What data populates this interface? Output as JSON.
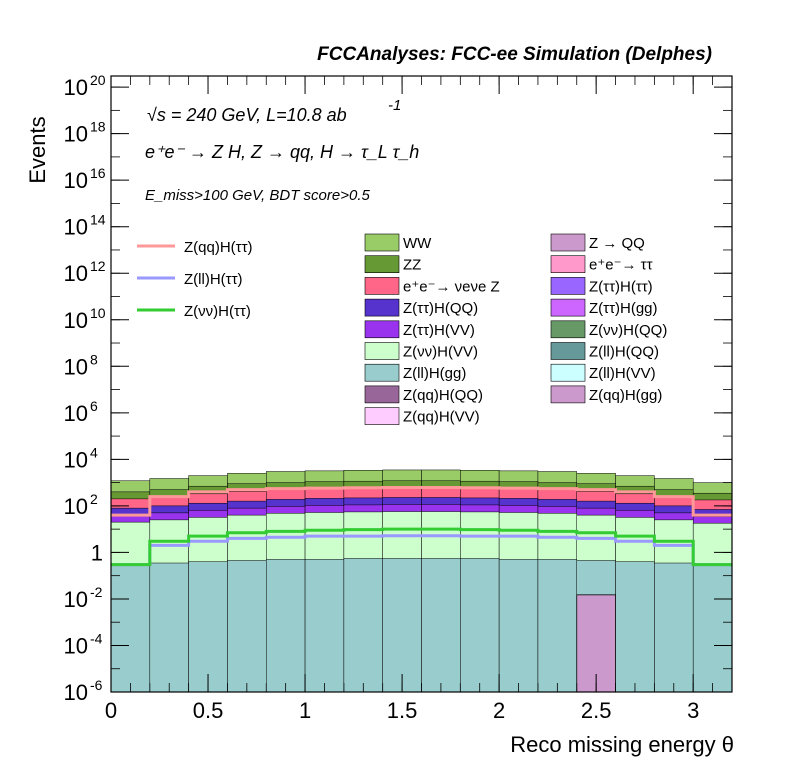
{
  "header": {
    "title": "FCCAnalyses: FCC-ee Simulation (Delphes)",
    "energy_line": "√s = 240 GeV, L=10.8 ab",
    "lumi_exponent": "-1",
    "process_line": "e⁺e⁻ → Z H, Z → qq, H → τ_L τ_h",
    "cut_line": "E_miss>100 GeV, BDT score>0.5"
  },
  "chart_data": {
    "type": "bar",
    "subtype": "stacked-histogram-log",
    "xlabel": "Reco missing energy θ",
    "ylabel": "Events",
    "xlim": [
      0,
      3.2
    ],
    "ylim": [
      1e-06,
      3e+20
    ],
    "log_y": true,
    "bin_edges": [
      0,
      0.2,
      0.4,
      0.6,
      0.8,
      1.0,
      1.2,
      1.4,
      1.6,
      1.8,
      2.0,
      2.2,
      2.4,
      2.6,
      2.8,
      3.0,
      3.2
    ],
    "x_ticks": [
      "0",
      "0.5",
      "1",
      "1.5",
      "2",
      "2.5",
      "3"
    ],
    "y_ticks": [
      {
        "exp": -6,
        "label": "10",
        "sup": "-6"
      },
      {
        "exp": -4,
        "label": "10",
        "sup": "-4"
      },
      {
        "exp": -2,
        "label": "10",
        "sup": "-2"
      },
      {
        "exp": 0,
        "label": "1",
        "sup": ""
      },
      {
        "exp": 2,
        "label": "10",
        "sup": "2"
      },
      {
        "exp": 4,
        "label": "10",
        "sup": "4"
      },
      {
        "exp": 6,
        "label": "10",
        "sup": "6"
      },
      {
        "exp": 8,
        "label": "10",
        "sup": "8"
      },
      {
        "exp": 10,
        "label": "10",
        "sup": "10"
      },
      {
        "exp": 12,
        "label": "10",
        "sup": "12"
      },
      {
        "exp": 14,
        "label": "10",
        "sup": "14"
      },
      {
        "exp": 16,
        "label": "10",
        "sup": "16"
      },
      {
        "exp": 18,
        "label": "10",
        "sup": "18"
      },
      {
        "exp": 20,
        "label": "10",
        "sup": "20"
      }
    ],
    "stack_totals": [
      {
        "name": "WW",
        "color": "#99cc66",
        "values": [
          1200,
          1500,
          2000,
          2500,
          3000,
          3200,
          3400,
          3500,
          3500,
          3400,
          3200,
          3000,
          2500,
          2000,
          1500,
          1000
        ]
      },
      {
        "name": "ZZ",
        "color": "#669933",
        "values": [
          400,
          500,
          700,
          900,
          1000,
          1100,
          1150,
          1200,
          1200,
          1150,
          1100,
          1000,
          900,
          700,
          500,
          350
        ]
      },
      {
        "name": "e⁺e⁻→ νeνe Z",
        "color": "#ff6688",
        "values": [
          200,
          250,
          330,
          420,
          500,
          550,
          580,
          600,
          600,
          580,
          550,
          500,
          420,
          330,
          250,
          180
        ]
      },
      {
        "name": "Z(ττ)H(QQ)",
        "color": "#5533cc",
        "values": [
          80,
          100,
          130,
          160,
          190,
          210,
          220,
          230,
          230,
          220,
          210,
          190,
          160,
          130,
          100,
          70
        ]
      },
      {
        "name": "Z(ττ)H(VV)",
        "color": "#9933ee",
        "values": [
          40,
          50,
          65,
          80,
          95,
          105,
          110,
          115,
          115,
          110,
          105,
          95,
          80,
          65,
          50,
          35
        ]
      },
      {
        "name": "Z(νν)H(VV)",
        "color": "#ccffcc",
        "values": [
          20,
          25,
          32,
          40,
          48,
          52,
          55,
          57,
          57,
          55,
          52,
          48,
          40,
          32,
          25,
          18
        ]
      },
      {
        "name": "Z(ll)H(gg)",
        "color": "#99cccc",
        "values": [
          0.3,
          0.35,
          0.4,
          0.45,
          0.5,
          0.5,
          0.55,
          0.55,
          0.55,
          0.55,
          0.5,
          0.5,
          0.45,
          0.4,
          0.35,
          0.3
        ]
      }
    ],
    "series_lines": [
      {
        "name": "Z(qq)H(ττ)",
        "color": "#ff9999",
        "values": [
          40,
          250,
          400,
          500,
          550,
          580,
          600,
          620,
          620,
          600,
          580,
          550,
          500,
          400,
          250,
          40
        ]
      },
      {
        "name": "Z(ll)H(ττ)",
        "color": "#9999ff",
        "values": [
          0.3,
          2,
          3,
          4,
          4.5,
          5,
          5,
          5.2,
          5.2,
          5,
          5,
          4.5,
          4,
          3,
          2,
          0.3
        ]
      },
      {
        "name": "Z(νν)H(ττ)",
        "color": "#33cc33",
        "values": [
          0.3,
          3,
          5,
          7,
          8,
          9,
          9.5,
          10,
          10,
          9.5,
          9,
          8,
          7,
          5,
          3,
          0.3
        ]
      }
    ],
    "isolated_bar": {
      "name": "Z(qq)H(gg)",
      "color": "#cc99cc",
      "bin": [
        2.4,
        2.6
      ],
      "value": 0.015
    },
    "legend_lines": [
      {
        "label": "Z(qq)H(ττ)",
        "color": "#ff9999"
      },
      {
        "label": "Z(ll)H(ττ)",
        "color": "#9999ff"
      },
      {
        "label": "Z(νν)H(ττ)",
        "color": "#33cc33"
      }
    ],
    "legend_col1": [
      {
        "label": "WW",
        "color": "#99cc66"
      },
      {
        "label": "ZZ",
        "color": "#669933"
      },
      {
        "label": "e⁺e⁻→ νeνe Z",
        "color": "#ff6688"
      },
      {
        "label": "Z(ττ)H(QQ)",
        "color": "#5533cc"
      },
      {
        "label": "Z(ττ)H(VV)",
        "color": "#9933ee"
      },
      {
        "label": "Z(νν)H(VV)",
        "color": "#ccffcc"
      },
      {
        "label": "Z(ll)H(gg)",
        "color": "#99cccc"
      },
      {
        "label": "Z(qq)H(QQ)",
        "color": "#996699"
      },
      {
        "label": "Z(qq)H(VV)",
        "color": "#ffccff"
      }
    ],
    "legend_col2": [
      {
        "label": "Z → QQ",
        "color": "#cc99cc"
      },
      {
        "label": "e⁺e⁻→ ττ",
        "color": "#ff99cc"
      },
      {
        "label": "Z(ττ)H(ττ)",
        "color": "#9966ff"
      },
      {
        "label": "Z(ττ)H(gg)",
        "color": "#cc66ff"
      },
      {
        "label": "Z(νν)H(QQ)",
        "color": "#669966"
      },
      {
        "label": "Z(ll)H(QQ)",
        "color": "#669999"
      },
      {
        "label": "Z(ll)H(VV)",
        "color": "#ccffff"
      },
      {
        "label": "Z(qq)H(gg)",
        "color": "#cc99cc"
      }
    ]
  }
}
